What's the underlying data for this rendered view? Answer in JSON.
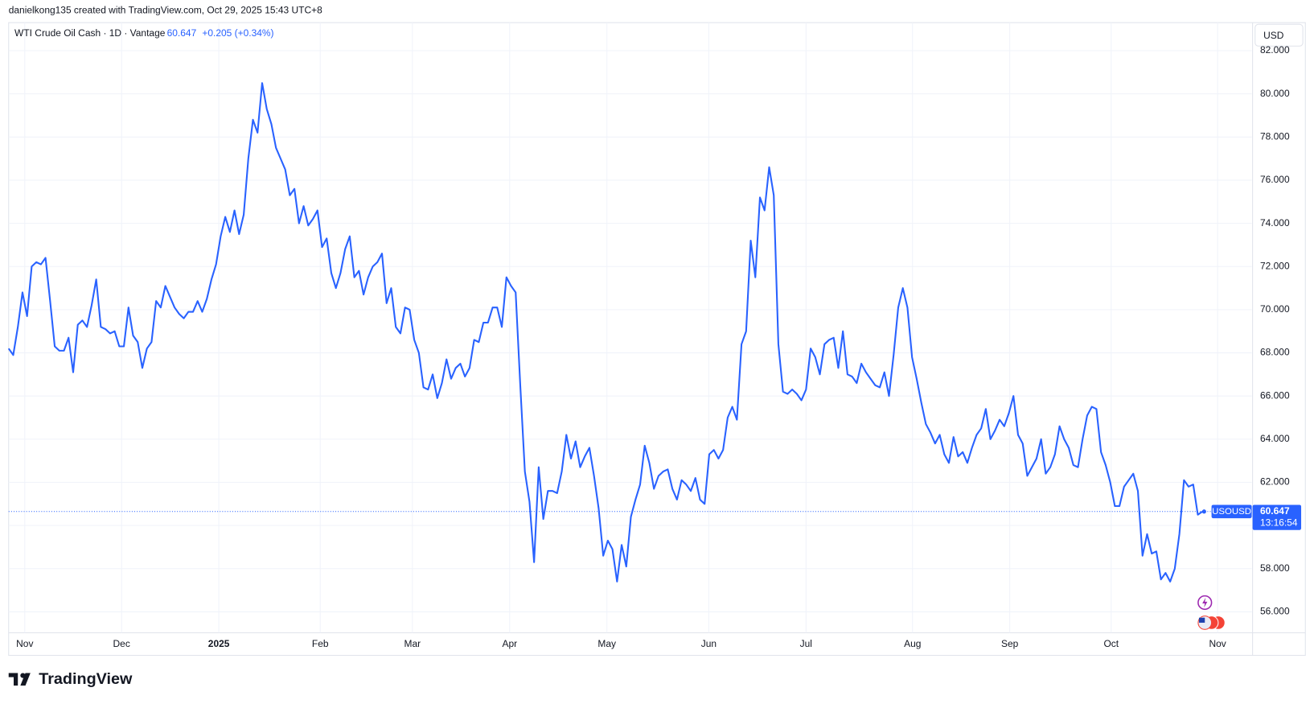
{
  "header": {
    "watermark": "danielkong135 created with TradingView.com, Oct 29, 2025 15:43 UTC+8",
    "logo": "TradingView"
  },
  "chart_data": {
    "type": "line",
    "title": "WTI Crude Oil Cash · 1D · Vantage",
    "change": "+0.205 (+0.34%)",
    "currency": "USD",
    "countdown": "13:16:54",
    "series": [
      {
        "name": "USOUSD",
        "color": "#2962ff",
        "values": [
          68.2,
          67.9,
          69.2,
          70.8,
          69.7,
          72.0,
          72.2,
          72.1,
          72.4,
          70.4,
          68.3,
          68.1,
          68.1,
          68.7,
          67.1,
          69.3,
          69.5,
          69.2,
          70.2,
          71.4,
          69.2,
          69.1,
          68.9,
          69.0,
          68.3,
          68.3,
          70.1,
          68.8,
          68.5,
          67.3,
          68.2,
          68.5,
          70.4,
          70.1,
          71.1,
          70.6,
          70.1,
          69.8,
          69.6,
          69.9,
          69.9,
          70.4,
          69.9,
          70.5,
          71.4,
          72.1,
          73.4,
          74.3,
          73.6,
          74.6,
          73.5,
          74.4,
          77.0,
          78.8,
          78.2,
          80.5,
          79.3,
          78.6,
          77.5,
          77.0,
          76.5,
          75.3,
          75.6,
          74.0,
          74.8,
          73.9,
          74.2,
          74.6,
          72.9,
          73.3,
          71.7,
          71.0,
          71.7,
          72.8,
          73.4,
          71.5,
          71.8,
          70.7,
          71.5,
          72.0,
          72.2,
          72.6,
          70.3,
          71.0,
          69.2,
          68.9,
          70.1,
          70.0,
          68.6,
          68.0,
          66.4,
          66.3,
          67.0,
          65.9,
          66.6,
          67.7,
          66.8,
          67.3,
          67.5,
          66.9,
          67.3,
          68.6,
          68.5,
          69.4,
          69.4,
          70.1,
          70.1,
          69.2,
          71.5,
          71.1,
          70.8,
          66.5,
          62.5,
          61.1,
          58.3,
          62.7,
          60.3,
          61.6,
          61.6,
          61.5,
          62.5,
          64.2,
          63.1,
          63.9,
          62.7,
          63.2,
          63.6,
          62.3,
          60.8,
          58.6,
          59.3,
          58.9,
          57.4,
          59.1,
          58.1,
          60.4,
          61.2,
          61.9,
          63.7,
          62.9,
          61.7,
          62.3,
          62.5,
          62.6,
          61.7,
          61.2,
          62.1,
          61.9,
          61.6,
          62.2,
          61.2,
          61.0,
          63.3,
          63.5,
          63.1,
          63.5,
          65.0,
          65.5,
          64.9,
          68.4,
          69.0,
          73.2,
          71.5,
          75.2,
          74.6,
          76.6,
          75.3,
          68.4,
          66.2,
          66.1,
          66.3,
          66.1,
          65.8,
          66.3,
          68.2,
          67.8,
          67.0,
          68.4,
          68.6,
          68.7,
          67.3,
          69.0,
          67.0,
          66.9,
          66.6,
          67.5,
          67.1,
          66.8,
          66.5,
          66.4,
          67.1,
          66.0,
          67.9,
          70.1,
          71.0,
          70.1,
          67.8,
          66.8,
          65.7,
          64.7,
          64.3,
          63.8,
          64.2,
          63.3,
          62.9,
          64.1,
          63.2,
          63.4,
          62.9,
          63.6,
          64.2,
          64.5,
          65.4,
          64.0,
          64.4,
          64.9,
          64.6,
          65.2,
          66.0,
          64.2,
          63.8,
          62.3,
          62.7,
          63.1,
          64.0,
          62.4,
          62.7,
          63.3,
          64.6,
          64.0,
          63.6,
          62.8,
          62.7,
          64.0,
          65.1,
          65.5,
          65.4,
          63.4,
          62.8,
          62.0,
          60.9,
          60.9,
          61.8,
          62.1,
          62.4,
          61.6,
          58.6,
          59.6,
          58.7,
          58.8,
          57.5,
          57.8,
          57.4,
          58.0,
          59.6,
          62.1,
          61.8,
          61.9,
          60.5,
          60.647
        ]
      }
    ],
    "xlim": [
      0,
      269.7
    ],
    "xticks": [
      {
        "value": 3.5,
        "label": "Nov"
      },
      {
        "value": 24.5,
        "label": "Dec"
      },
      {
        "value": 45.6,
        "label": "2025"
      },
      {
        "value": 67.6,
        "label": "Feb"
      },
      {
        "value": 87.6,
        "label": "Mar"
      },
      {
        "value": 108.7,
        "label": "Apr"
      },
      {
        "value": 129.8,
        "label": "May"
      },
      {
        "value": 151.9,
        "label": "Jun"
      },
      {
        "value": 173.0,
        "label": "Jul"
      },
      {
        "value": 196.1,
        "label": "Aug"
      },
      {
        "value": 217.2,
        "label": "Sep"
      },
      {
        "value": 239.2,
        "label": "Oct"
      },
      {
        "value": 262.3,
        "label": "Nov"
      }
    ],
    "ylim": [
      55.03,
      83.3
    ],
    "yticks": [
      {
        "value": 56,
        "label": "56.000"
      },
      {
        "value": 58,
        "label": "58.000"
      },
      {
        "value": 60,
        "label": "60.000"
      },
      {
        "value": 62,
        "label": "62.000"
      },
      {
        "value": 64,
        "label": "64.000"
      },
      {
        "value": 66,
        "label": "66.000"
      },
      {
        "value": 68,
        "label": "68.000"
      },
      {
        "value": 70,
        "label": "70.000"
      },
      {
        "value": 72,
        "label": "72.000"
      },
      {
        "value": 74,
        "label": "74.000"
      },
      {
        "value": 76,
        "label": "76.000"
      },
      {
        "value": 78,
        "label": "78.000"
      },
      {
        "value": 80,
        "label": "80.000"
      },
      {
        "value": 82,
        "label": "82.000"
      }
    ],
    "grid": true
  }
}
